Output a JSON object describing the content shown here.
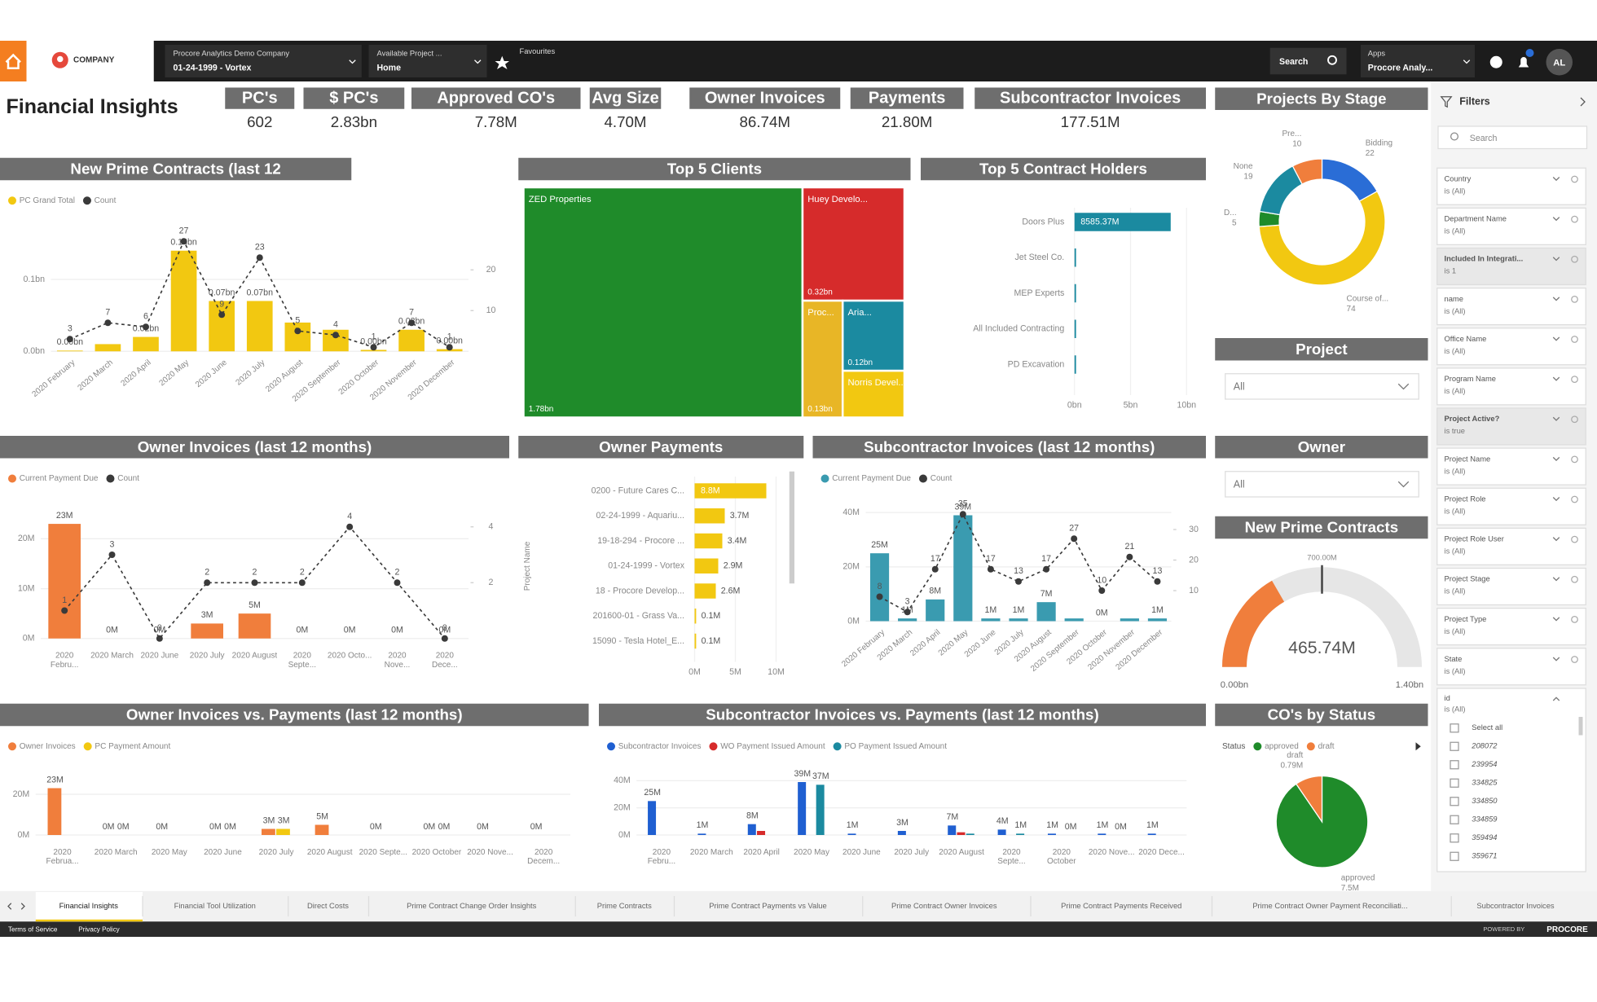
{
  "nav": {
    "logo": "COMPANY",
    "company_selector": {
      "label": "Procore Analytics Demo Company",
      "value": "01-24-1999 - Vortex"
    },
    "project_selector": {
      "label": "Available Project ...",
      "value": "Home"
    },
    "favourites": "Favourites",
    "search": "Search",
    "apps": {
      "label": "Apps",
      "value": "Procore Analy..."
    },
    "user": "AL"
  },
  "page_title": "Financial Insights",
  "kpis": [
    {
      "label": "PC's",
      "value": "602"
    },
    {
      "label": "$ PC's",
      "value": "2.83bn"
    },
    {
      "label": "Approved CO's",
      "value": "7.78M"
    },
    {
      "label": "Avg Size",
      "value": "4.70M"
    },
    {
      "label": "Owner Invoices",
      "value": "86.74M"
    },
    {
      "label": "Payments",
      "value": "21.80M"
    },
    {
      "label": "Subcontractor Invoices",
      "value": "177.51M"
    }
  ],
  "charts": [
    {
      "type": "combo",
      "title": "New Prime Contracts (last 12",
      "categories": [
        "2020 February",
        "2020 March",
        "2020 April",
        "2020 May",
        "2020 June",
        "2020 July",
        "2020 August",
        "2020 September",
        "2020 October",
        "2020 November",
        "2020 December"
      ],
      "series": [
        {
          "name": "PC Grand Total",
          "color": "#f2c811",
          "values": [
            0.001,
            0.01,
            0.02,
            0.14,
            0.07,
            0.07,
            0.04,
            0.03,
            0.002,
            0.03,
            0.003
          ],
          "value_labels": [
            "0.00bn",
            null,
            "0.02bn",
            "0.14bn",
            "0.07bn",
            "0.07bn",
            null,
            null,
            "0.00bn",
            "0.03bn",
            "0.00bn"
          ]
        },
        {
          "name": "Count",
          "color": "#3a3a3a",
          "axis": "y2",
          "values": [
            3,
            7,
            6,
            27,
            9,
            23,
            5,
            4,
            1,
            7,
            1
          ]
        }
      ],
      "ylim": [
        0,
        0.17
      ],
      "yticks": [
        {
          "value": 0,
          "label": "0.0bn"
        },
        {
          "value": 0.1,
          "label": "0.1bn"
        }
      ],
      "y2lim": [
        0,
        30
      ],
      "y2ticks": [
        10,
        20
      ]
    },
    {
      "type": "treemap",
      "title": "Top 5 Clients",
      "categories": [
        "ZED Properties",
        "Huey Develo...",
        "Proc...",
        "Aria...",
        "Norris Devel..."
      ],
      "values": [
        1.78,
        0.32,
        0.13,
        0.12,
        0.08
      ],
      "value_labels": [
        "1.78bn",
        "0.32bn",
        "0.13bn",
        "0.12bn",
        null
      ],
      "colors": [
        "#1f8b2a",
        "#d62b2b",
        "#e8b626",
        "#1b8aa0",
        "#f2c811"
      ]
    },
    {
      "type": "hbar",
      "title": "Top 5 Contract Holders",
      "categories": [
        "Doors Plus",
        "Jet Steel Co.",
        "MEP Experts",
        "All Included Contracting",
        "PD Excavation"
      ],
      "values": [
        8.58537,
        0.12,
        0.06,
        0.05,
        0.04
      ],
      "value_labels": [
        "8585.37M",
        null,
        null,
        null,
        null
      ],
      "color": "#1b8aa0",
      "xlim": [
        0,
        10
      ],
      "xticks": [
        {
          "value": 0,
          "label": "0bn"
        },
        {
          "value": 5,
          "label": "5bn"
        },
        {
          "value": 10,
          "label": "10bn"
        }
      ]
    },
    {
      "type": "donut",
      "title": "Projects By Stage",
      "categories": [
        "Bidding",
        "Course of...",
        "D...",
        "None",
        "Pre..."
      ],
      "values": [
        22,
        74,
        5,
        19,
        10
      ],
      "colors": [
        "#2a6dd6",
        "#f2c811",
        "#1f8b2a",
        "#1b8aa0",
        "#f07e3c"
      ]
    },
    {
      "type": "slicer",
      "title": "Project",
      "value": "All"
    },
    {
      "type": "combo",
      "title": "Owner Invoices (last 12 months)",
      "categories": [
        "2020 Febru...",
        "2020 March",
        "2020 June",
        "2020 July",
        "2020 August",
        "2020 Septe...",
        "2020 Octo...",
        "2020 Nove...",
        "2020 Dece..."
      ],
      "series": [
        {
          "name": "Current Payment Due",
          "color": "#f07e3c",
          "values": [
            23,
            0,
            0,
            3,
            5,
            0,
            0,
            0,
            0
          ],
          "value_labels": [
            "23M",
            "0M",
            "0M",
            "3M",
            "5M",
            "0M",
            "0M",
            "0M",
            "0M"
          ]
        },
        {
          "name": "Count",
          "color": "#3a3a3a",
          "axis": "y2",
          "values": [
            1,
            3,
            0,
            2,
            2,
            2,
            4,
            2,
            0
          ]
        }
      ],
      "ylim": [
        0,
        28
      ],
      "yticks": [
        {
          "value": 0,
          "label": "0M"
        },
        {
          "value": 10,
          "label": "10M"
        },
        {
          "value": 20,
          "label": "20M"
        }
      ],
      "y2lim": [
        0,
        5
      ],
      "y2ticks": [
        2,
        4
      ]
    },
    {
      "type": "hbar",
      "title": "Owner Payments",
      "axis_label": "Project Name",
      "categories": [
        "0200 - Future Cares C...",
        "02-24-1999 - Aquariu...",
        "19-18-294 - Procore ...",
        "01-24-1999 - Vortex",
        "18 - Procore Develop...",
        "201600-01 - Grass Va...",
        "15090 - Tesla Hotel_E..."
      ],
      "values": [
        8.8,
        3.7,
        3.4,
        2.9,
        2.6,
        0.1,
        0.1
      ],
      "value_labels": [
        "8.8M",
        "3.7M",
        "3.4M",
        "2.9M",
        "2.6M",
        "0.1M",
        "0.1M"
      ],
      "color": "#f2c811",
      "xlim": [
        0,
        10
      ],
      "xticks": [
        {
          "value": 0,
          "label": "0M"
        },
        {
          "value": 5,
          "label": "5M"
        },
        {
          "value": 10,
          "label": "10M"
        }
      ]
    },
    {
      "type": "combo",
      "title": "Subcontractor Invoices (last 12 months)",
      "categories": [
        "2020 February",
        "2020 March",
        "2020 April",
        "2020 May",
        "2020 June",
        "2020 July",
        "2020 August",
        "2020 September",
        "2020 October",
        "2020 November",
        "2020 December"
      ],
      "series": [
        {
          "name": "Current Payment Due",
          "color": "#3a9bb0",
          "values": [
            25,
            1,
            8,
            39,
            1,
            1,
            7,
            1,
            0,
            1,
            1
          ],
          "value_labels": [
            "25M",
            "1M",
            "8M",
            "39M",
            "1M",
            "1M",
            "7M",
            null,
            "0M",
            null,
            "1M"
          ]
        },
        {
          "name": "Count",
          "color": "#3a3a3a",
          "axis": "y2",
          "values": [
            8,
            3,
            17,
            35,
            17,
            13,
            17,
            27,
            10,
            21,
            13
          ]
        }
      ],
      "ylim": [
        0,
        45
      ],
      "yticks": [
        {
          "value": 0,
          "label": "0M"
        },
        {
          "value": 20,
          "label": "20M"
        },
        {
          "value": 40,
          "label": "40M"
        }
      ],
      "y2lim": [
        0,
        40
      ],
      "y2ticks": [
        10,
        20,
        30
      ]
    },
    {
      "type": "slicer",
      "title": "Owner",
      "value": "All"
    },
    {
      "type": "gauge",
      "title": "New Prime Contracts",
      "value": 465.74,
      "value_label": "465.74M",
      "range": [
        0,
        1400
      ],
      "range_labels": [
        "0.00bn",
        "1.40bn"
      ],
      "target": 700,
      "target_label": "700.00M",
      "color": "#f07e3c"
    },
    {
      "type": "bars",
      "title": "Owner Invoices vs. Payments (last 12 months)",
      "categories": [
        "2020 Februa...",
        "2020 March",
        "2020 May",
        "2020 June",
        "2020 July",
        "2020 August",
        "2020 Septe...",
        "2020 October",
        "2020 Nove...",
        "2020 Decem..."
      ],
      "series": [
        {
          "name": "Owner Invoices",
          "color": "#f07e3c",
          "values": [
            23,
            0,
            0,
            0,
            3,
            5,
            0,
            0,
            0,
            0
          ],
          "value_labels": [
            "23M",
            "0M",
            "0M",
            "0M",
            "3M",
            "5M",
            "0M",
            "0M",
            "0M",
            "0M"
          ]
        },
        {
          "name": "PC Payment Amount",
          "color": "#f2c811",
          "values": [
            0,
            0,
            0,
            0,
            3,
            0,
            0,
            0,
            0,
            0
          ],
          "value_labels": [
            null,
            "0M",
            null,
            "0M",
            "3M",
            null,
            null,
            "0M",
            null,
            null
          ]
        }
      ],
      "ylim": [
        0,
        30
      ],
      "yticks": [
        {
          "value": 0,
          "label": "0M"
        },
        {
          "value": 20,
          "label": "20M"
        }
      ]
    },
    {
      "type": "bars",
      "title": "Subcontractor Invoices vs. Payments (last 12 months)",
      "categories": [
        "2020 Febru...",
        "2020 March",
        "2020 April",
        "2020 May",
        "2020 June",
        "2020 July",
        "2020 August",
        "2020 Septe...",
        "2020 October",
        "2020 Nove...",
        "2020 Dece..."
      ],
      "series": [
        {
          "name": "Subcontractor Invoices",
          "color": "#1f5fd1",
          "values": [
            25,
            1,
            8,
            39,
            1,
            3,
            7,
            4,
            1,
            1,
            1
          ],
          "value_labels": [
            "25M",
            "1M",
            "8M",
            "39M",
            "1M",
            "3M",
            "7M",
            "4M",
            "1M",
            "1M",
            "1M"
          ]
        },
        {
          "name": "WO Payment Issued Amount",
          "color": "#d62b2b",
          "values": [
            0,
            0,
            3,
            0,
            0,
            0,
            2,
            0,
            0,
            0,
            0
          ],
          "value_labels": [
            null,
            null,
            null,
            null,
            null,
            null,
            null,
            null,
            null,
            null,
            null
          ]
        },
        {
          "name": "PO Payment Issued Amount",
          "color": "#1b8aa0",
          "values": [
            0,
            0,
            0,
            37,
            0,
            0,
            1,
            1,
            0,
            0,
            0
          ],
          "value_labels": [
            null,
            null,
            null,
            "37M",
            null,
            null,
            null,
            "1M",
            "0M",
            "0M",
            null
          ]
        }
      ],
      "ylim": [
        0,
        45
      ],
      "yticks": [
        {
          "value": 0,
          "label": "0M"
        },
        {
          "value": 20,
          "label": "20M"
        },
        {
          "value": 40,
          "label": "40M"
        }
      ]
    },
    {
      "type": "pie",
      "title": "CO's by Status",
      "legend_title": "Status",
      "categories": [
        "approved",
        "draft"
      ],
      "values": [
        7.5,
        0.79
      ],
      "value_labels": [
        "7.5M",
        "0.79M"
      ],
      "colors": [
        "#1f8b2a",
        "#f07e3c"
      ]
    }
  ],
  "filters": {
    "title": "Filters",
    "search": "Search",
    "cards": [
      {
        "field": "Country",
        "condition": "is (All)",
        "applied": false
      },
      {
        "field": "Department Name",
        "condition": "is (All)",
        "applied": false
      },
      {
        "field": "Included In Integrati...",
        "condition": "is 1",
        "applied": true
      },
      {
        "field": "name",
        "condition": "is (All)",
        "applied": false
      },
      {
        "field": "Office Name",
        "condition": "is (All)",
        "applied": false
      },
      {
        "field": "Program Name",
        "condition": "is (All)",
        "applied": false
      },
      {
        "field": "Project Active?",
        "condition": "is true",
        "applied": true
      },
      {
        "field": "Project Name",
        "condition": "is (All)",
        "applied": false
      },
      {
        "field": "Project Role",
        "condition": "is (All)",
        "applied": false
      },
      {
        "field": "Project Role User",
        "condition": "is (All)",
        "applied": false
      },
      {
        "field": "Project Stage",
        "condition": "is (All)",
        "applied": false
      },
      {
        "field": "Project Type",
        "condition": "is (All)",
        "applied": false
      },
      {
        "field": "State",
        "condition": "is (All)",
        "applied": false
      }
    ],
    "id_card": {
      "field": "id",
      "condition": "is (All)",
      "options": [
        "Select all",
        "208072",
        "239954",
        "334825",
        "334850",
        "334859",
        "359494",
        "359671"
      ]
    }
  },
  "tabs": [
    "Financial Insights",
    "Financial Tool Utilization",
    "Direct Costs",
    "Prime Contract Change Order Insights",
    "Prime Contracts",
    "Prime Contract Payments vs Value",
    "Prime Contract Owner Invoices",
    "Prime Contract Payments Received",
    "Prime Contract Owner Payment Reconciliati...",
    "Subcontractor Invoices"
  ],
  "footer": {
    "links": [
      "Terms of Service",
      "Privacy Policy"
    ],
    "powered_by": "POWERED BY",
    "brand": "PROCORE"
  }
}
